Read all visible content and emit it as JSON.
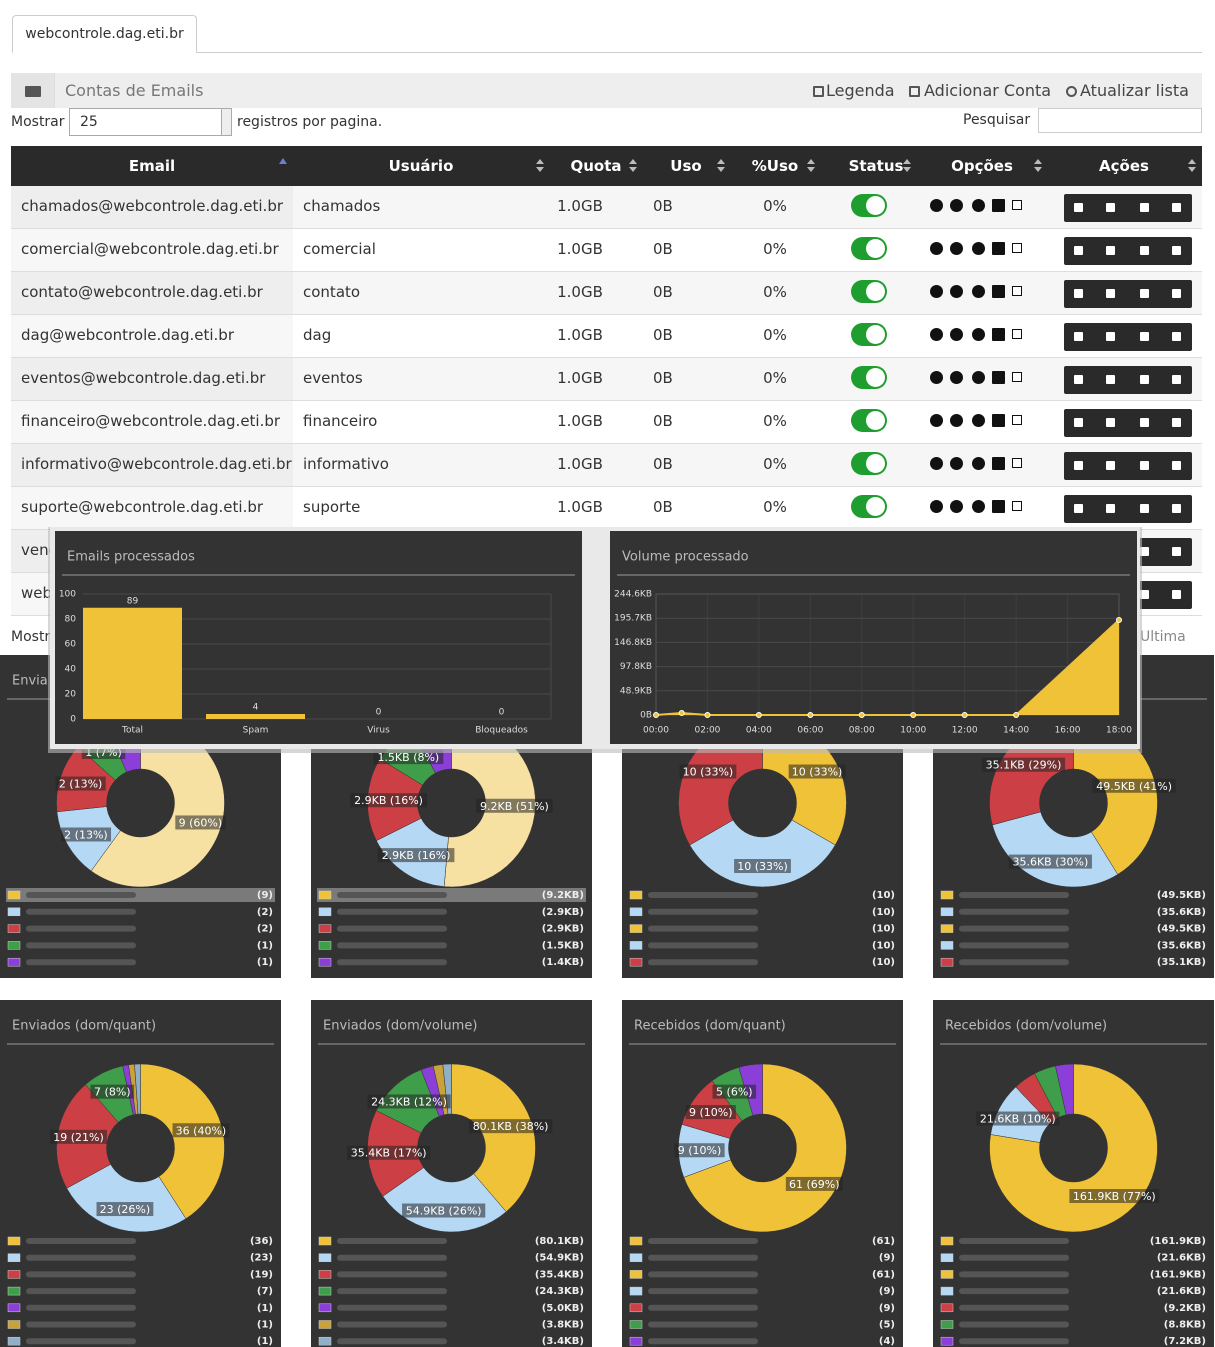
{
  "tab": "webcontrole.dag.eti.br",
  "panel": {
    "title": "Contas de Emails",
    "actions": [
      "Legenda",
      "Adicionar Conta",
      "Atualizar lista"
    ]
  },
  "controls": {
    "show_label": "Mostrar",
    "page_size": "25",
    "per_page": "registros por pagina.",
    "search_label": "Pesquisar"
  },
  "table": {
    "headers": [
      "Email",
      "Usuário",
      "Quota",
      "Uso",
      "%Uso",
      "Status",
      "Opções",
      "Ações"
    ],
    "rows": [
      [
        "chamados@webcontrole.dag.eti.br",
        "chamados",
        "1.0GB",
        "0B",
        "0%"
      ],
      [
        "comercial@webcontrole.dag.eti.br",
        "comercial",
        "1.0GB",
        "0B",
        "0%"
      ],
      [
        "contato@webcontrole.dag.eti.br",
        "contato",
        "1.0GB",
        "0B",
        "0%"
      ],
      [
        "dag@webcontrole.dag.eti.br",
        "dag",
        "1.0GB",
        "0B",
        "0%"
      ],
      [
        "eventos@webcontrole.dag.eti.br",
        "eventos",
        "1.0GB",
        "0B",
        "0%"
      ],
      [
        "financeiro@webcontrole.dag.eti.br",
        "financeiro",
        "1.0GB",
        "0B",
        "0%"
      ],
      [
        "informativo@webcontrole.dag.eti.br",
        "informativo",
        "1.0GB",
        "0B",
        "0%"
      ],
      [
        "suporte@webcontrole.dag.eti.br",
        "suporte",
        "1.0GB",
        "0B",
        "0%"
      ],
      [
        "vend"
      ],
      [
        "web"
      ]
    ]
  },
  "footer": {
    "left": "Mostr",
    "right": "Ultima"
  },
  "chart_data": [
    {
      "type": "bar",
      "title": "Emails processados",
      "categories": [
        "Total",
        "Spam",
        "Virus",
        "Bloqueados"
      ],
      "values": [
        89,
        4,
        0,
        0
      ],
      "color": "#f0c238",
      "ylim": [
        0,
        100
      ],
      "yticks": [
        0,
        20,
        40,
        60,
        80,
        100
      ],
      "grid": true
    },
    {
      "type": "line",
      "title": "Volume processado",
      "x": [
        0,
        1,
        2,
        4,
        6,
        8,
        10,
        12,
        14,
        18
      ],
      "values": [
        0,
        4,
        0,
        0,
        0,
        0,
        0,
        0,
        0,
        192
      ],
      "color": "#f0c238",
      "area": true,
      "xlim": [
        0,
        18
      ],
      "xticks": [
        {
          "value": 0,
          "label": "00:00"
        },
        {
          "value": 2,
          "label": "02:00"
        },
        {
          "value": 4,
          "label": "04:00"
        },
        {
          "value": 6,
          "label": "06:00"
        },
        {
          "value": 8,
          "label": "08:00"
        },
        {
          "value": 10,
          "label": "10:00"
        },
        {
          "value": 12,
          "label": "12:00"
        },
        {
          "value": 14,
          "label": "14:00"
        },
        {
          "value": 16,
          "label": "16:00"
        },
        {
          "value": 18,
          "label": "18:00"
        }
      ],
      "ylim": [
        0,
        244.6
      ],
      "yticks": [
        {
          "value": 0,
          "label": "0B"
        },
        {
          "value": 48.9,
          "label": "48.9KB"
        },
        {
          "value": 97.8,
          "label": "97.8KB"
        },
        {
          "value": 146.8,
          "label": "146.8KB"
        },
        {
          "value": 195.7,
          "label": "195.7KB"
        },
        {
          "value": 244.6,
          "label": "244.6KB"
        }
      ],
      "grid": true
    },
    {
      "type": "pie",
      "title": "Envia",
      "values": [
        9,
        2,
        2,
        1,
        1
      ],
      "colors": [
        "#f6e0a2",
        "#b5d8f5",
        "#cc4045",
        "#3f9e4a",
        "#8b3fd8"
      ],
      "slice_labels": [
        "9 (60%)",
        "2 (13%)",
        "2 (13%)",
        "1 (7%)",
        null
      ],
      "legend": {
        "labels": [
          "(9)",
          "(2)",
          "(2)",
          "(1)",
          "(1)"
        ],
        "colors": [
          "#f0c238",
          "#b5d8f5",
          "#cc4045",
          "#3f9e4a",
          "#8b3fd8"
        ]
      }
    },
    {
      "type": "pie",
      "values": [
        9.2,
        2.9,
        2.9,
        1.5,
        1.4
      ],
      "colors": [
        "#f6e0a2",
        "#b5d8f5",
        "#cc4045",
        "#3f9e4a",
        "#8b3fd8"
      ],
      "slice_labels": [
        "9.2KB (51%)",
        "2.9KB (16%)",
        "2.9KB (16%)",
        "1.5KB (8%)",
        null
      ],
      "legend": {
        "labels": [
          "(9.2KB)",
          "(2.9KB)",
          "(2.9KB)",
          "(1.5KB)",
          "(1.4KB)"
        ],
        "colors": [
          "#f0c238",
          "#b5d8f5",
          "#cc4045",
          "#3f9e4a",
          "#8b3fd8"
        ]
      }
    },
    {
      "type": "pie",
      "values": [
        10,
        10,
        10
      ],
      "colors": [
        "#f0c238",
        "#b5d8f5",
        "#cc4045"
      ],
      "slice_labels": [
        "10 (33%)",
        "10 (33%)",
        "10 (33%)"
      ],
      "legend": {
        "labels": [
          "(10)",
          "(10)",
          "(10)",
          "(10)",
          "(10)"
        ],
        "colors": [
          "#f0c238",
          "#b5d8f5",
          "#f0c238",
          "#b5d8f5",
          "#cc4045"
        ]
      }
    },
    {
      "type": "pie",
      "values": [
        49.5,
        35.6,
        35.1
      ],
      "colors": [
        "#f0c238",
        "#b5d8f5",
        "#cc4045"
      ],
      "slice_labels": [
        "49.5KB (41%)",
        "35.6KB (30%)",
        "35.1KB (29%)"
      ],
      "legend": {
        "labels": [
          "(49.5KB)",
          "(35.6KB)",
          "(49.5KB)",
          "(35.6KB)",
          "(35.1KB)"
        ],
        "colors": [
          "#f0c238",
          "#b5d8f5",
          "#f0c238",
          "#b5d8f5",
          "#cc4045"
        ]
      }
    },
    {
      "type": "pie",
      "title": "Enviados (dom/quant)",
      "values": [
        36,
        23,
        19,
        7,
        1,
        1,
        1
      ],
      "colors": [
        "#f0c238",
        "#b5d8f5",
        "#cc4045",
        "#3f9e4a",
        "#8b3fd8",
        "#c9a23a",
        "#8fb0c8"
      ],
      "slice_labels": [
        "36 (40%)",
        "23 (26%)",
        "19 (21%)",
        "7 (8%)",
        null,
        null,
        null
      ],
      "legend": {
        "labels": [
          "(36)",
          "(23)",
          "(19)",
          "(7)",
          "(1)",
          "(1)",
          "(1)"
        ],
        "colors": [
          "#f0c238",
          "#b5d8f5",
          "#cc4045",
          "#3f9e4a",
          "#8b3fd8",
          "#c9a23a",
          "#8fb0c8"
        ]
      }
    },
    {
      "type": "pie",
      "title": "Enviados (dom/volume)",
      "values": [
        80.1,
        54.9,
        35.4,
        24.3,
        5.0,
        3.8,
        3.4
      ],
      "colors": [
        "#f0c238",
        "#b5d8f5",
        "#cc4045",
        "#3f9e4a",
        "#8b3fd8",
        "#c9a23a",
        "#8fb0c8"
      ],
      "slice_labels": [
        "80.1KB (38%)",
        "54.9KB (26%)",
        "35.4KB (17%)",
        "24.3KB (12%)",
        null,
        null,
        null
      ],
      "legend": {
        "labels": [
          "(80.1KB)",
          "(54.9KB)",
          "(35.4KB)",
          "(24.3KB)",
          "(5.0KB)",
          "(3.8KB)",
          "(3.4KB)"
        ],
        "colors": [
          "#f0c238",
          "#b5d8f5",
          "#cc4045",
          "#3f9e4a",
          "#8b3fd8",
          "#c9a23a",
          "#8fb0c8"
        ]
      }
    },
    {
      "type": "pie",
      "title": "Recebidos (dom/quant)",
      "values": [
        61,
        9,
        9,
        5,
        4
      ],
      "colors": [
        "#f0c238",
        "#b5d8f5",
        "#cc4045",
        "#3f9e4a",
        "#8b3fd8"
      ],
      "slice_labels": [
        "61 (69%)",
        "9 (10%)",
        "9 (10%)",
        "5 (6%)",
        null
      ],
      "legend": {
        "labels": [
          "(61)",
          "(9)",
          "(61)",
          "(9)",
          "(9)",
          "(5)",
          "(4)"
        ],
        "colors": [
          "#f0c238",
          "#b5d8f5",
          "#f0c238",
          "#b5d8f5",
          "#cc4045",
          "#3f9e4a",
          "#8b3fd8"
        ]
      }
    },
    {
      "type": "pie",
      "title": "Recebidos (dom/volume)",
      "values": [
        161.9,
        21.6,
        9.2,
        8.8,
        7.2
      ],
      "colors": [
        "#f0c238",
        "#b5d8f5",
        "#cc4045",
        "#3f9e4a",
        "#8b3fd8"
      ],
      "slice_labels": [
        "161.9KB (77%)",
        "21.6KB (10%)",
        null,
        null,
        null
      ],
      "legend": {
        "labels": [
          "(161.9KB)",
          "(21.6KB)",
          "(161.9KB)",
          "(21.6KB)",
          "(9.2KB)",
          "(8.8KB)",
          "(7.2KB)"
        ],
        "colors": [
          "#f0c238",
          "#b5d8f5",
          "#f0c238",
          "#b5d8f5",
          "#cc4045",
          "#3f9e4a",
          "#8b3fd8"
        ]
      }
    }
  ]
}
